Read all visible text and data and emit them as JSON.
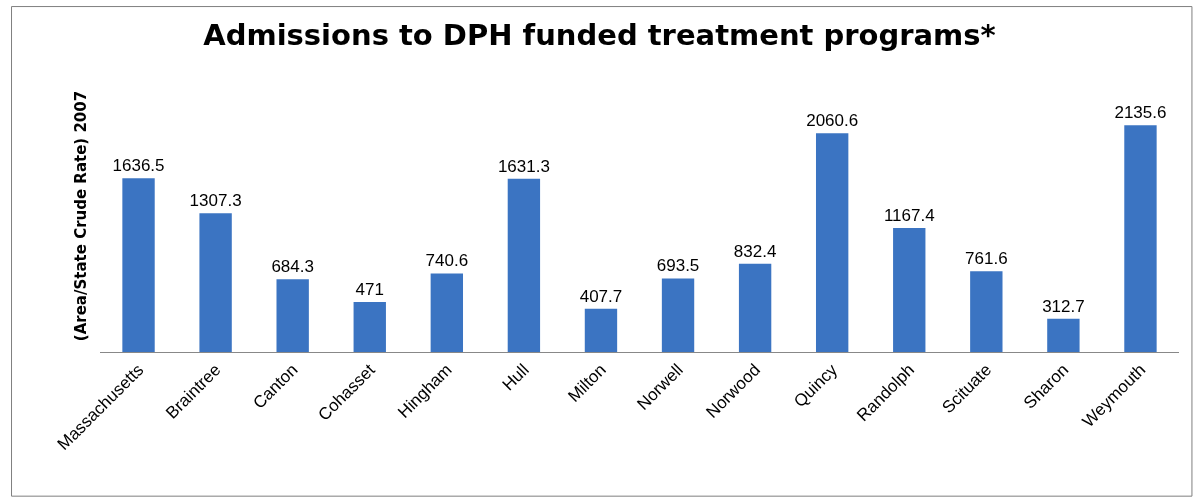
{
  "chart_data": {
    "type": "bar",
    "title": "Admissions to DPH funded treatment programs*",
    "ylabel": "(Area/State Crude Rate) 2007",
    "categories": [
      "Massachusetts",
      "Braintree",
      "Canton",
      "Cohasset",
      "Hingham",
      "Hull",
      "Milton",
      "Norwell",
      "Norwood",
      "Quincy",
      "Randolph",
      "Scituate",
      "Sharon",
      "Weymouth"
    ],
    "values": [
      1636.5,
      1307.3,
      684.3,
      471,
      740.6,
      1631.3,
      407.7,
      693.5,
      832.4,
      2060.6,
      1167.4,
      761.6,
      312.7,
      2135.6
    ],
    "color": "#3b74c2",
    "data_labels": true
  }
}
